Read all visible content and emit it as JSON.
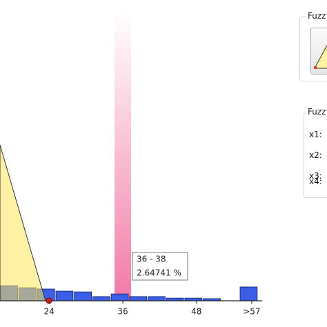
{
  "chart_data": {
    "type": "histogram",
    "bins": [
      16,
      19,
      22,
      25,
      28,
      31,
      34,
      37,
      40,
      43,
      46,
      49,
      52,
      55,
      58
    ],
    "values": [
      5.8,
      5.0,
      4.5,
      3.7,
      3.4,
      1.6,
      2.6,
      1.6,
      1.6,
      1.0,
      1.0,
      0.8,
      0,
      5.3
    ],
    "color": "#3b5ee6",
    "xlim": [
      16,
      58.7
    ],
    "ylim": [
      0,
      30
    ],
    "xticks": [
      24,
      36,
      48,
      {
        "value": 57,
        "label": ">57"
      }
    ],
    "tooltip": {
      "range": "36 - 38",
      "value": "2.64741 %"
    }
  },
  "panel": {
    "group1": "Fuzz",
    "group2": "Fuzz",
    "fields": [
      "x1:",
      "x2:",
      "x3:",
      "x4:"
    ]
  }
}
